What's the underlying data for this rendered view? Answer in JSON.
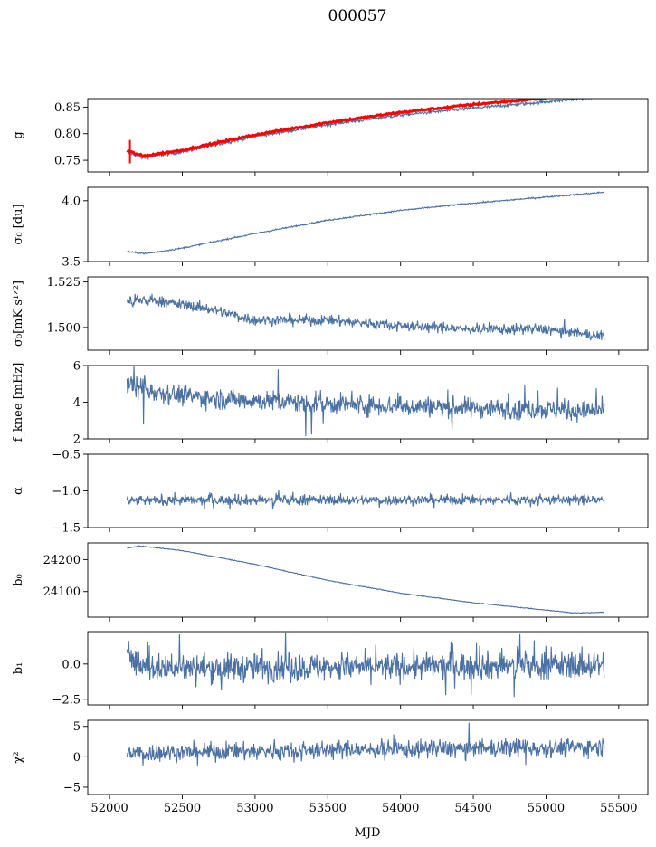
{
  "chart_data": {
    "title": "000057",
    "type": "line",
    "xlabel": "MJD",
    "xlim": [
      51850,
      55700
    ],
    "x_ticks": [
      52000,
      52500,
      53000,
      53500,
      54000,
      54500,
      55000,
      55500
    ],
    "x_range": [
      52120,
      55400
    ],
    "series_color": "#4c72a4",
    "fit_color": "#ff0000",
    "panels": [
      {
        "name": "g",
        "ylabel": "g",
        "ylim": [
          0.728,
          0.866
        ],
        "y_ticks": [
          0.75,
          0.8,
          0.85
        ],
        "y_tick_labels": [
          "0.75",
          "0.80",
          "0.85"
        ],
        "trend": [
          [
            52120,
            0.765
          ],
          [
            52230,
            0.755
          ],
          [
            52500,
            0.766
          ],
          [
            53000,
            0.795
          ],
          [
            53500,
            0.817
          ],
          [
            54000,
            0.835
          ],
          [
            54500,
            0.848
          ],
          [
            55000,
            0.86
          ],
          [
            55400,
            0.87
          ]
        ],
        "noise": 0.0015,
        "spike": 0,
        "fit": {
          "trend": [
            [
              52120,
              0.768
            ],
            [
              52230,
              0.758
            ],
            [
              52500,
              0.769
            ],
            [
              53000,
              0.798
            ],
            [
              53500,
              0.821
            ],
            [
              54000,
              0.84
            ],
            [
              54500,
              0.855
            ],
            [
              55000,
              0.867
            ]
          ],
          "errbar": 0.022
        }
      },
      {
        "name": "sigma0",
        "ylabel": "σ₀ [du]",
        "ylim": [
          3.5,
          4.11
        ],
        "y_ticks": [
          3.5,
          4.0
        ],
        "y_tick_labels": [
          "3.5",
          "4.0"
        ],
        "trend": [
          [
            52130,
            3.58
          ],
          [
            52250,
            3.565
          ],
          [
            52500,
            3.61
          ],
          [
            53000,
            3.73
          ],
          [
            53500,
            3.84
          ],
          [
            54000,
            3.92
          ],
          [
            54500,
            3.98
          ],
          [
            55000,
            4.03
          ],
          [
            55400,
            4.07
          ]
        ],
        "noise": 0.003,
        "spike": 0
      },
      {
        "name": "sigma0-sensitivity",
        "ylabel": "σ₀[mK s¹ᐟ²]",
        "ylim": [
          1.4875,
          1.5278
        ],
        "y_ticks": [
          1.5,
          1.525
        ],
        "y_tick_labels": [
          "1.500",
          "1.525"
        ],
        "trend": [
          [
            52130,
            1.514
          ],
          [
            52300,
            1.515
          ],
          [
            52700,
            1.51
          ],
          [
            53000,
            1.504
          ],
          [
            53500,
            1.504
          ],
          [
            54000,
            1.501
          ],
          [
            54500,
            1.499
          ],
          [
            55000,
            1.499
          ],
          [
            55400,
            1.495
          ]
        ],
        "noise": 0.0015,
        "spike": 0.002
      },
      {
        "name": "fknee",
        "ylabel": "f_knee [mHz]",
        "ylim": [
          2.0,
          6.0
        ],
        "y_ticks": [
          2,
          4,
          6
        ],
        "y_tick_labels": [
          "2",
          "4",
          "6"
        ],
        "trend": [
          [
            52130,
            5.0
          ],
          [
            52300,
            4.6
          ],
          [
            52700,
            4.2
          ],
          [
            53000,
            4.1
          ],
          [
            53500,
            3.9
          ],
          [
            54000,
            3.8
          ],
          [
            54500,
            3.7
          ],
          [
            55000,
            3.6
          ],
          [
            55400,
            3.5
          ]
        ],
        "noise": 0.28,
        "spike": 1.2
      },
      {
        "name": "alpha",
        "ylabel": "α",
        "ylim": [
          -1.5,
          -0.5
        ],
        "y_ticks": [
          -1.5,
          -1.0,
          -0.5
        ],
        "y_tick_labels": [
          "−1.5",
          "−1.0",
          "−0.5"
        ],
        "trend": [
          [
            52130,
            -1.13
          ],
          [
            55400,
            -1.12
          ]
        ],
        "noise": 0.035,
        "spike": 0.08
      },
      {
        "name": "b0",
        "ylabel": "b₀",
        "ylim": [
          24020,
          24252
        ],
        "y_ticks": [
          24100,
          24200
        ],
        "y_tick_labels": [
          "24100",
          "24200"
        ],
        "trend": [
          [
            52130,
            24236
          ],
          [
            52200,
            24243
          ],
          [
            52500,
            24228
          ],
          [
            53000,
            24185
          ],
          [
            53500,
            24135
          ],
          [
            54000,
            24095
          ],
          [
            54500,
            24065
          ],
          [
            55000,
            24042
          ],
          [
            55200,
            24033
          ],
          [
            55400,
            24035
          ]
        ],
        "noise": 0.6,
        "spike": 0
      },
      {
        "name": "b1",
        "ylabel": "b₁",
        "ylim": [
          -2.9,
          2.3
        ],
        "y_ticks": [
          -2.5,
          0.0
        ],
        "y_tick_labels": [
          "−2.5",
          "0.0"
        ],
        "trend": [
          [
            52130,
            1.4
          ],
          [
            52160,
            0.2
          ],
          [
            52250,
            -0.3
          ],
          [
            55400,
            -0.1
          ]
        ],
        "noise": 0.5,
        "spike": 1.4
      },
      {
        "name": "chi2",
        "ylabel": "χ²",
        "ylim": [
          -6.2,
          6.0
        ],
        "y_ticks": [
          -5,
          0,
          5
        ],
        "y_tick_labels": [
          "−5",
          "0",
          "5"
        ],
        "trend": [
          [
            52130,
            0.6
          ],
          [
            53500,
            1.1
          ],
          [
            55400,
            1.6
          ]
        ],
        "noise": 0.75,
        "spike": 1.5
      }
    ]
  }
}
